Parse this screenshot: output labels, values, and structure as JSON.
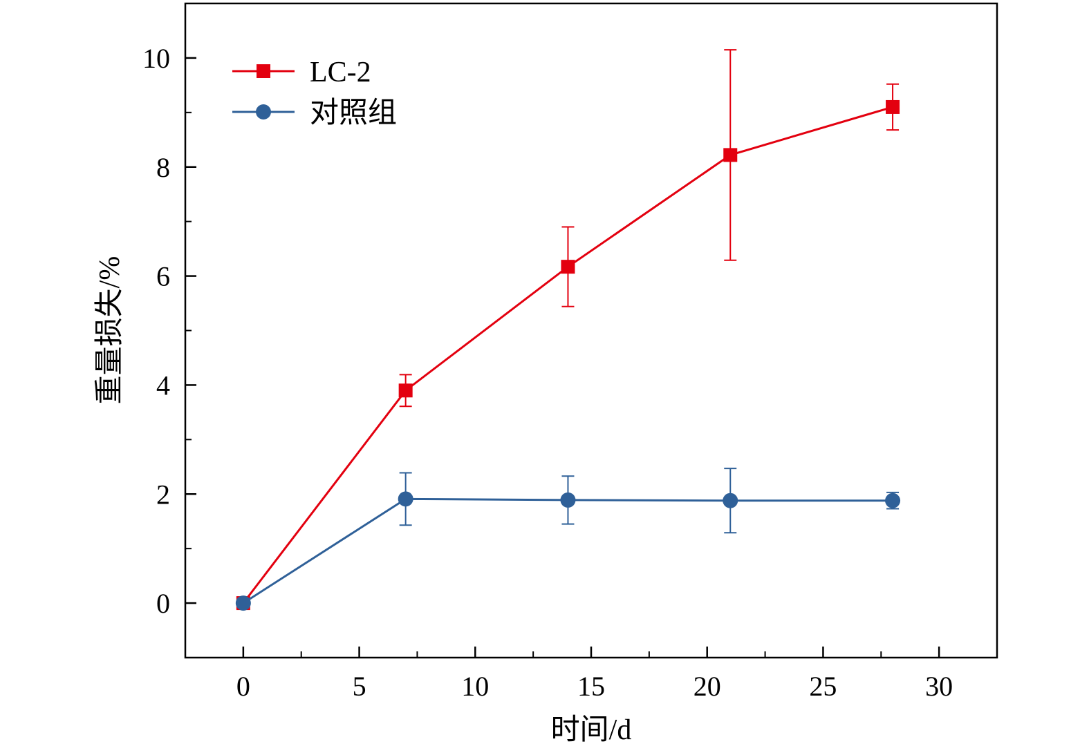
{
  "chart_data": {
    "type": "line",
    "title": "",
    "xlabel": "时间/d",
    "ylabel": "重量损失/%",
    "xlim": [
      -2.5,
      32.5
    ],
    "ylim": [
      -1,
      11
    ],
    "x_ticks": [
      0,
      5,
      10,
      15,
      20,
      25,
      30
    ],
    "x_tick_labels": [
      "0",
      "5",
      "10",
      "15",
      "20",
      "25",
      "30"
    ],
    "y_ticks": [
      0,
      2,
      4,
      6,
      8,
      10
    ],
    "y_tick_labels": [
      "0",
      "2",
      "4",
      "6",
      "8",
      "10"
    ],
    "grid": false,
    "legend_position": "top-left",
    "series": [
      {
        "name": "LC-2",
        "color": "#e3000f",
        "marker": "square",
        "x": [
          0,
          7,
          14,
          21,
          28
        ],
        "y": [
          0,
          3.9,
          6.17,
          8.22,
          9.1
        ],
        "error": [
          0,
          0.29,
          0.73,
          1.93,
          0.42
        ]
      },
      {
        "name": "对照组",
        "color": "#2f6098",
        "marker": "circle",
        "x": [
          0,
          7,
          14,
          21,
          28
        ],
        "y": [
          0,
          1.91,
          1.89,
          1.88,
          1.88
        ],
        "error": [
          0,
          0.48,
          0.44,
          0.59,
          0.15
        ]
      }
    ]
  }
}
